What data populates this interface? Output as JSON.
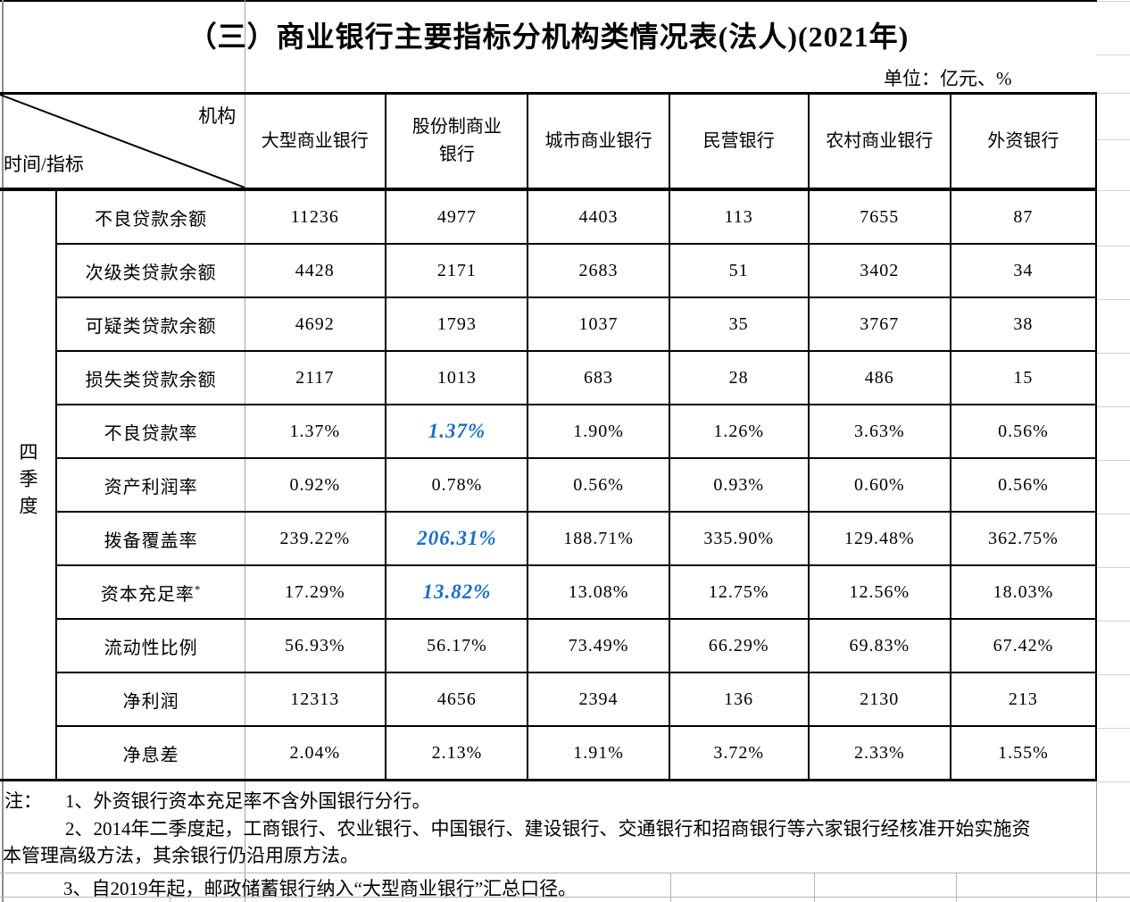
{
  "title": "（三）商业银行主要指标分机构类情况表(法人)(2021年)",
  "unit_note": "单位：亿元、%",
  "table": {
    "corner": {
      "institution_label": "机构",
      "time_indicator_label": "时间/指标"
    },
    "row_group_label": "四季度",
    "columns": [
      "大型商业银行",
      "股份制商业银行",
      "城市商业银行",
      "民营银行",
      "农村商业银行",
      "外资银行"
    ],
    "rows": [
      {
        "label": "不良贷款余额",
        "values": [
          "11236",
          "4977",
          "4403",
          "113",
          "7655",
          "87"
        ]
      },
      {
        "label": "次级类贷款余额",
        "values": [
          "4428",
          "2171",
          "2683",
          "51",
          "3402",
          "34"
        ]
      },
      {
        "label": "可疑类贷款余额",
        "values": [
          "4692",
          "1793",
          "1037",
          "35",
          "3767",
          "38"
        ]
      },
      {
        "label": "损失类贷款余额",
        "values": [
          "2117",
          "1013",
          "683",
          "28",
          "486",
          "15"
        ]
      },
      {
        "label": "不良贷款率",
        "values": [
          "1.37%",
          "1.37%",
          "1.90%",
          "1.26%",
          "3.63%",
          "0.56%"
        ],
        "highlight": [
          1
        ]
      },
      {
        "label": "资产利润率",
        "values": [
          "0.92%",
          "0.78%",
          "0.56%",
          "0.93%",
          "0.60%",
          "0.56%"
        ]
      },
      {
        "label": "拨备覆盖率",
        "values": [
          "239.22%",
          "206.31%",
          "188.71%",
          "335.90%",
          "129.48%",
          "362.75%"
        ],
        "highlight": [
          1
        ]
      },
      {
        "label": "资本充足率",
        "label_sup": "*",
        "values": [
          "17.29%",
          "13.82%",
          "13.08%",
          "12.75%",
          "12.56%",
          "18.03%"
        ],
        "highlight": [
          1
        ]
      },
      {
        "label": "流动性比例",
        "values": [
          "56.93%",
          "56.17%",
          "73.49%",
          "66.29%",
          "69.83%",
          "67.42%"
        ]
      },
      {
        "label": "净利润",
        "values": [
          "12313",
          "4656",
          "2394",
          "136",
          "2130",
          "213"
        ]
      },
      {
        "label": "净息差",
        "values": [
          "2.04%",
          "2.13%",
          "1.91%",
          "3.72%",
          "2.33%",
          "1.55%"
        ]
      }
    ]
  },
  "notes": {
    "prefix": "注：",
    "note1": "1、外资银行资本充足率不含外国银行分行。",
    "note2_line1": "2、2014年二季度起，工商银行、农业银行、中国银行、建设银行、交通银行和招商银行等六家银行经核准开始实施资",
    "note2_line2": "本管理高级方法，其余银行仍沿用原方法。",
    "note3": "3、自2019年起，邮政储蓄银行纳入“大型商业银行”汇总口径。"
  },
  "colors": {
    "highlight_blue": "#1a70c7"
  }
}
